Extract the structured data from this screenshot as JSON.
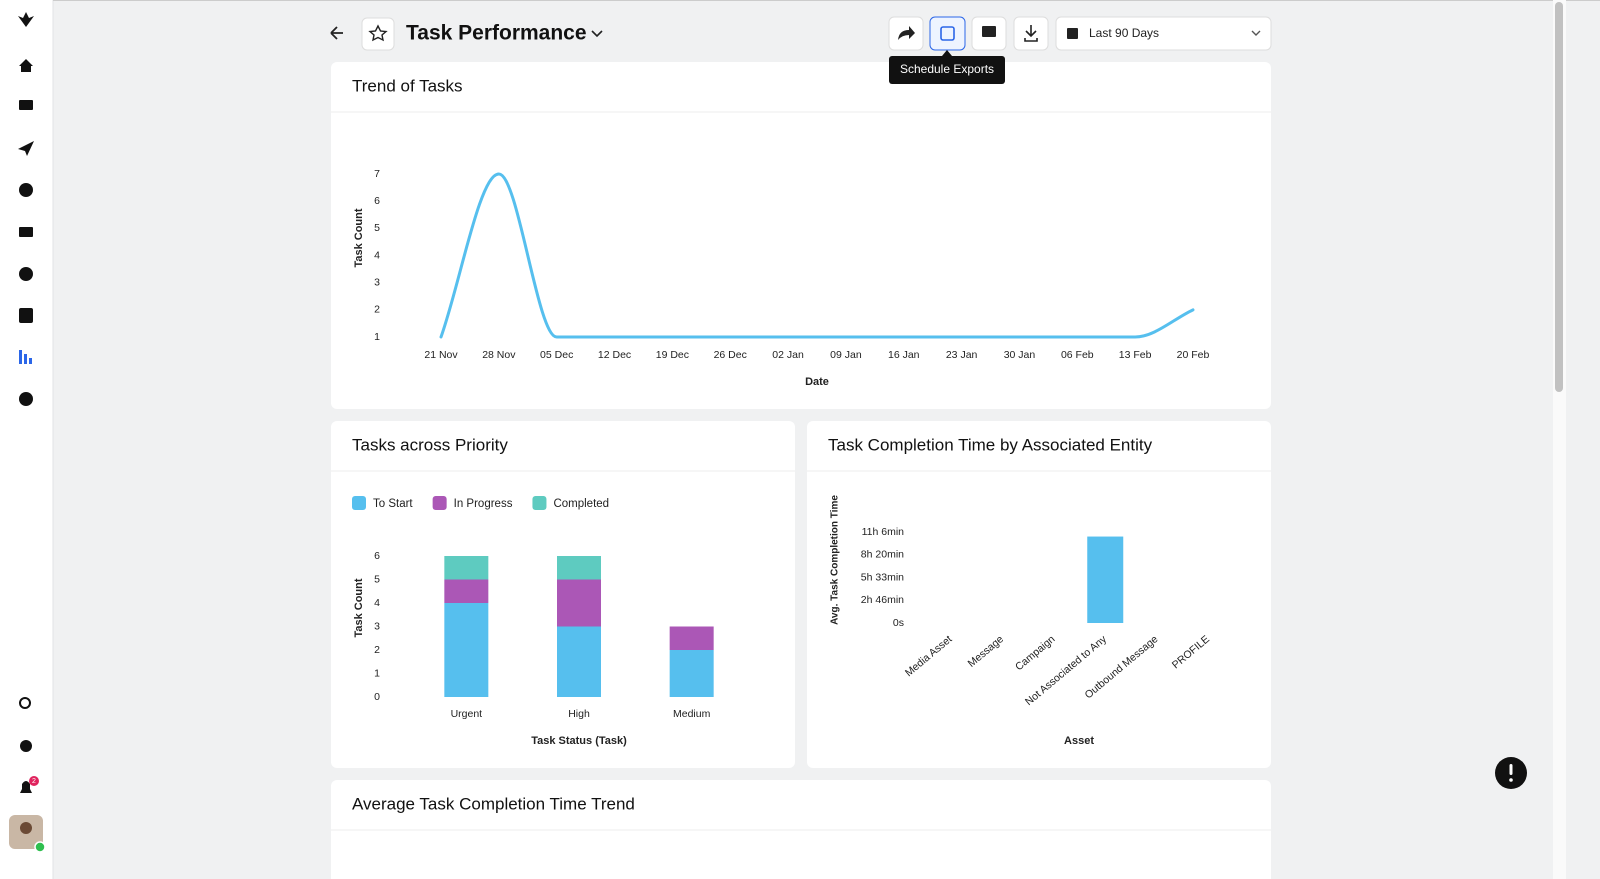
{
  "header": {
    "title": "Task Performance",
    "date_range": "Last 90 Days",
    "tooltip": "Schedule Exports"
  },
  "sidebar": {
    "notification_count": 2
  },
  "chart_data": [
    {
      "type": "line",
      "title": "Trend of Tasks",
      "x_label": "Date",
      "y_label": "Task Count",
      "categories": [
        "21 Nov",
        "28 Nov",
        "05 Dec",
        "12 Dec",
        "19 Dec",
        "26 Dec",
        "02 Jan",
        "09 Jan",
        "16 Jan",
        "23 Jan",
        "30 Jan",
        "06 Feb",
        "13 Feb",
        "20 Feb"
      ],
      "values": [
        1,
        7,
        1,
        1,
        1,
        1,
        1,
        1,
        1,
        1,
        1,
        1,
        1,
        2
      ],
      "color": "#56bfee",
      "ylim": [
        1,
        7
      ],
      "yticks": [
        1,
        2,
        3,
        4,
        5,
        6,
        7
      ]
    },
    {
      "type": "stacked_bar",
      "title": "Tasks across Priority",
      "x_label": "Task Status (Task)",
      "y_label": "Task Count",
      "categories": [
        "Urgent",
        "High",
        "Medium"
      ],
      "series": [
        {
          "name": "To Start",
          "color": "#56bfee",
          "values": [
            4,
            3,
            2
          ]
        },
        {
          "name": "In Progress",
          "color": "#ab57b6",
          "values": [
            1,
            2,
            1
          ]
        },
        {
          "name": "Completed",
          "color": "#5ecbc0",
          "values": [
            1,
            1,
            0
          ]
        }
      ],
      "ylim": [
        0,
        6
      ],
      "yticks": [
        0,
        1,
        2,
        3,
        4,
        5,
        6
      ],
      "legend": "top-left"
    },
    {
      "type": "bar",
      "title": "Task Completion Time by Associated Entity",
      "x_label": "Asset",
      "y_label": "Avg. Task Completion Time",
      "categories": [
        "Media Asset",
        "Message",
        "Campaign",
        "Not Associated to Any",
        "Outbound Message",
        "PROFILE"
      ],
      "values": [
        0,
        0,
        0,
        38000,
        0,
        0
      ],
      "color": "#56bfee",
      "ylim": [
        0,
        40000
      ],
      "yticks": [
        {
          "value": 0,
          "label": "0s"
        },
        {
          "value": 10000,
          "label": "2h 46min"
        },
        {
          "value": 20000,
          "label": "5h 33min"
        },
        {
          "value": 30000,
          "label": "8h 20min"
        },
        {
          "value": 40000,
          "label": "11h 6min"
        }
      ]
    }
  ],
  "panels": [
    {
      "title": "Average Task Completion Time Trend"
    }
  ]
}
